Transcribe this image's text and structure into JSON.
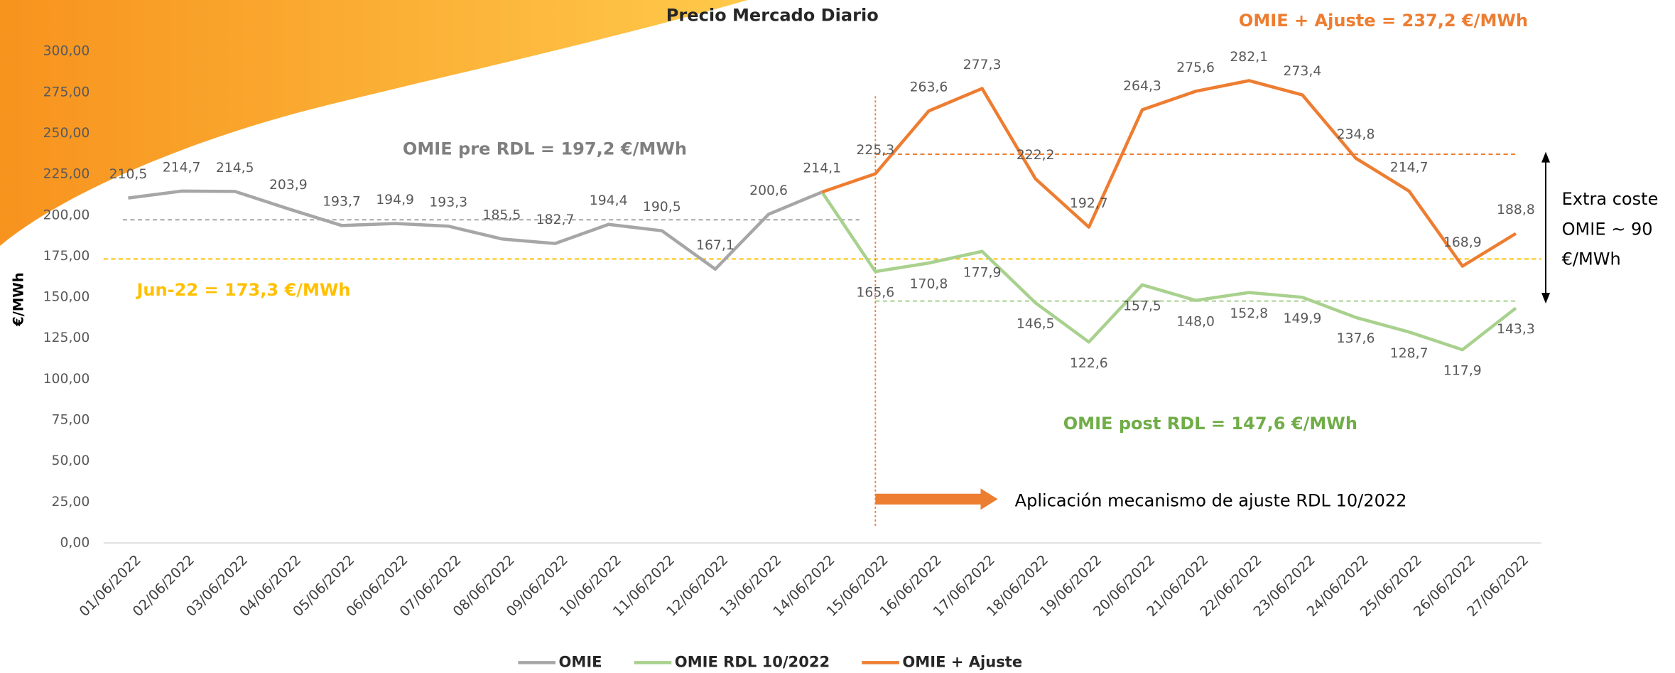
{
  "chart_data": {
    "type": "line",
    "title": "Precio Mercado Diario",
    "y_label": "€/MWh",
    "categories": [
      "01/06/2022",
      "02/06/2022",
      "03/06/2022",
      "04/06/2022",
      "05/06/2022",
      "06/06/2022",
      "07/06/2022",
      "08/06/2022",
      "09/06/2022",
      "10/06/2022",
      "11/06/2022",
      "12/06/2022",
      "13/06/2022",
      "14/06/2022",
      "15/06/2022",
      "16/06/2022",
      "17/06/2022",
      "18/06/2022",
      "19/06/2022",
      "20/06/2022",
      "21/06/2022",
      "22/06/2022",
      "23/06/2022",
      "24/06/2022",
      "25/06/2022",
      "26/06/2022",
      "27/06/2022"
    ],
    "ylim": [
      0,
      300
    ],
    "yticks": [
      {
        "value": 0,
        "label": "0,00"
      },
      {
        "value": 25,
        "label": "25,00"
      },
      {
        "value": 50,
        "label": "50,00"
      },
      {
        "value": 75,
        "label": "75,00"
      },
      {
        "value": 100,
        "label": "100,00"
      },
      {
        "value": 125,
        "label": "125,00"
      },
      {
        "value": 150,
        "label": "150,00"
      },
      {
        "value": 175,
        "label": "175,00"
      },
      {
        "value": 200,
        "label": "200,00"
      },
      {
        "value": 225,
        "label": "225,00"
      },
      {
        "value": 250,
        "label": "250,00"
      },
      {
        "value": 275,
        "label": "275,00"
      },
      {
        "value": 300,
        "label": "300,00"
      }
    ],
    "series": [
      {
        "name": "OMIE",
        "color": "#a6a6a6",
        "values": [
          210.5,
          214.7,
          214.5,
          203.9,
          193.7,
          194.9,
          193.3,
          185.5,
          182.7,
          194.4,
          190.5,
          167.1,
          200.6,
          214.1,
          null,
          null,
          null,
          null,
          null,
          null,
          null,
          null,
          null,
          null,
          null,
          null,
          null
        ],
        "value_labels": [
          "210,5",
          "214,7",
          "214,5",
          "203,9",
          "193,7",
          "194,9",
          "193,3",
          "185,5",
          "182,7",
          "194,4",
          "190,5",
          "167,1",
          "200,6",
          "214,1",
          null,
          null,
          null,
          null,
          null,
          null,
          null,
          null,
          null,
          null,
          null,
          null,
          null
        ]
      },
      {
        "name": "OMIE RDL 10/2022",
        "color": "#a9d18e",
        "values": [
          null,
          null,
          null,
          null,
          null,
          null,
          null,
          null,
          null,
          null,
          null,
          null,
          null,
          214.1,
          165.6,
          170.8,
          177.9,
          146.5,
          122.6,
          157.5,
          148.0,
          152.8,
          149.9,
          137.6,
          128.7,
          117.9,
          143.3
        ],
        "value_labels": [
          null,
          null,
          null,
          null,
          null,
          null,
          null,
          null,
          null,
          null,
          null,
          null,
          null,
          null,
          "165,6",
          "170,8",
          "177,9",
          "146,5",
          "122,6",
          "157,5",
          "148,0",
          "152,8",
          "149,9",
          "137,6",
          "128,7",
          "117,9",
          "143,3"
        ]
      },
      {
        "name": "OMIE + Ajuste",
        "color": "#ed7d31",
        "values": [
          null,
          null,
          null,
          null,
          null,
          null,
          null,
          null,
          null,
          null,
          null,
          null,
          null,
          214.1,
          225.3,
          263.6,
          277.3,
          222.2,
          192.7,
          264.3,
          275.6,
          282.1,
          273.4,
          234.8,
          214.7,
          168.9,
          188.8
        ],
        "value_labels": [
          null,
          null,
          null,
          null,
          null,
          null,
          null,
          null,
          null,
          null,
          null,
          null,
          null,
          null,
          "225,3",
          "263,6",
          "277,3",
          "222,2",
          "192,7",
          "264,3",
          "275,6",
          "282,1",
          "273,4",
          "234,8",
          "214,7",
          "168,9",
          "188,8"
        ]
      }
    ],
    "reference_lines": [
      {
        "value": 197.2,
        "label": "OMIE pre RDL = 197,2 €/MWh",
        "color": "#a6a6a6",
        "text_color": "#7f7f7f",
        "series": 0
      },
      {
        "value": 173.3,
        "label": "Jun-22 = 173,3 €/MWh",
        "color": "#ffc000",
        "text_color": "#ffc000"
      },
      {
        "value": 147.6,
        "label": "OMIE post RDL = 147,6 €/MWh",
        "color": "#a9d18e",
        "text_color": "#70ad47",
        "series": 1
      },
      {
        "value": 237.2,
        "label": "OMIE + Ajuste = 237,2 €/MWh",
        "color": "#ed7d31",
        "text_color": "#ed7d31",
        "series": 2
      }
    ],
    "annotations": {
      "mechanism": "Aplicación mecanismo de ajuste RDL 10/2022",
      "extra_cost": [
        "Extra coste",
        "OMIE ~ 90",
        "€/MWh"
      ]
    }
  }
}
